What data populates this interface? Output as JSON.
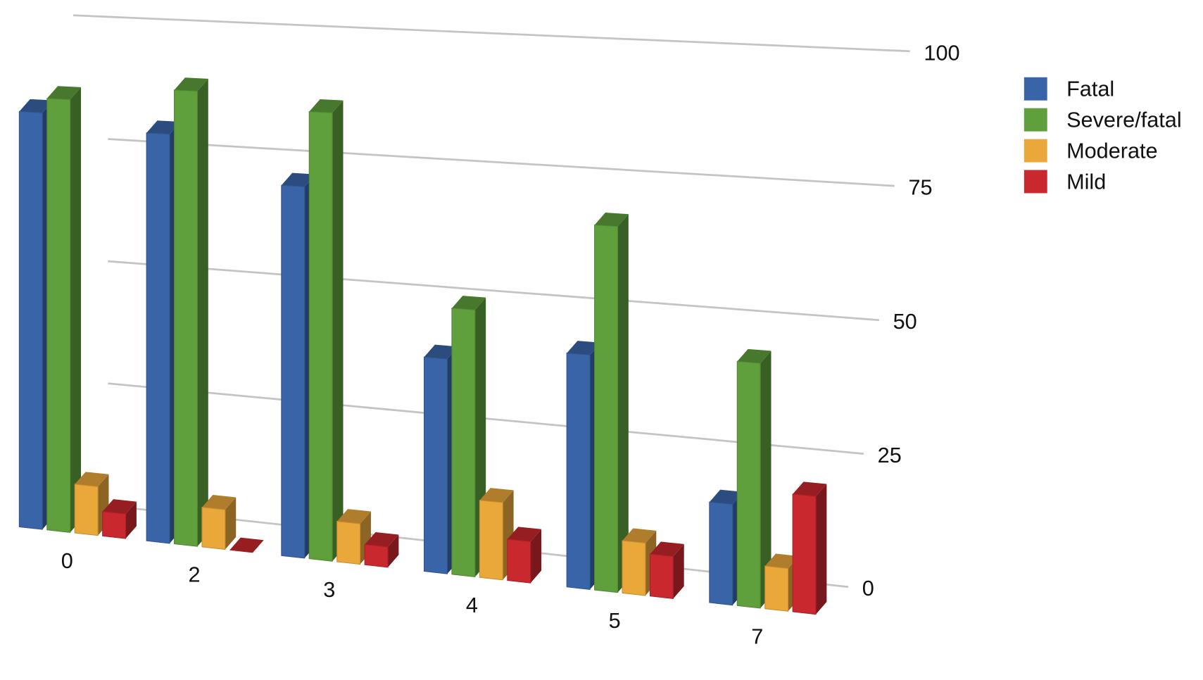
{
  "chart_data": {
    "type": "bar",
    "categories": [
      "0",
      "2",
      "3",
      "4",
      "5",
      "7"
    ],
    "series": [
      {
        "name": "Fatal",
        "color": "#3a64a8",
        "values": [
          86,
          83,
          74,
          42,
          45,
          19
        ]
      },
      {
        "name": "Severe/fatal",
        "color": "#5fa03c",
        "values": [
          89,
          92,
          89,
          52,
          70,
          46
        ]
      },
      {
        "name": "Moderate",
        "color": "#eaa73a",
        "values": [
          10,
          8,
          8,
          15,
          10,
          8
        ]
      },
      {
        "name": "Mild",
        "color": "#c8282e",
        "values": [
          5,
          0,
          4,
          8,
          8,
          22
        ]
      }
    ],
    "ylim": [
      0,
      100
    ],
    "yticks": [
      0,
      25,
      50,
      75,
      100
    ],
    "grid": true,
    "legend": "right"
  }
}
